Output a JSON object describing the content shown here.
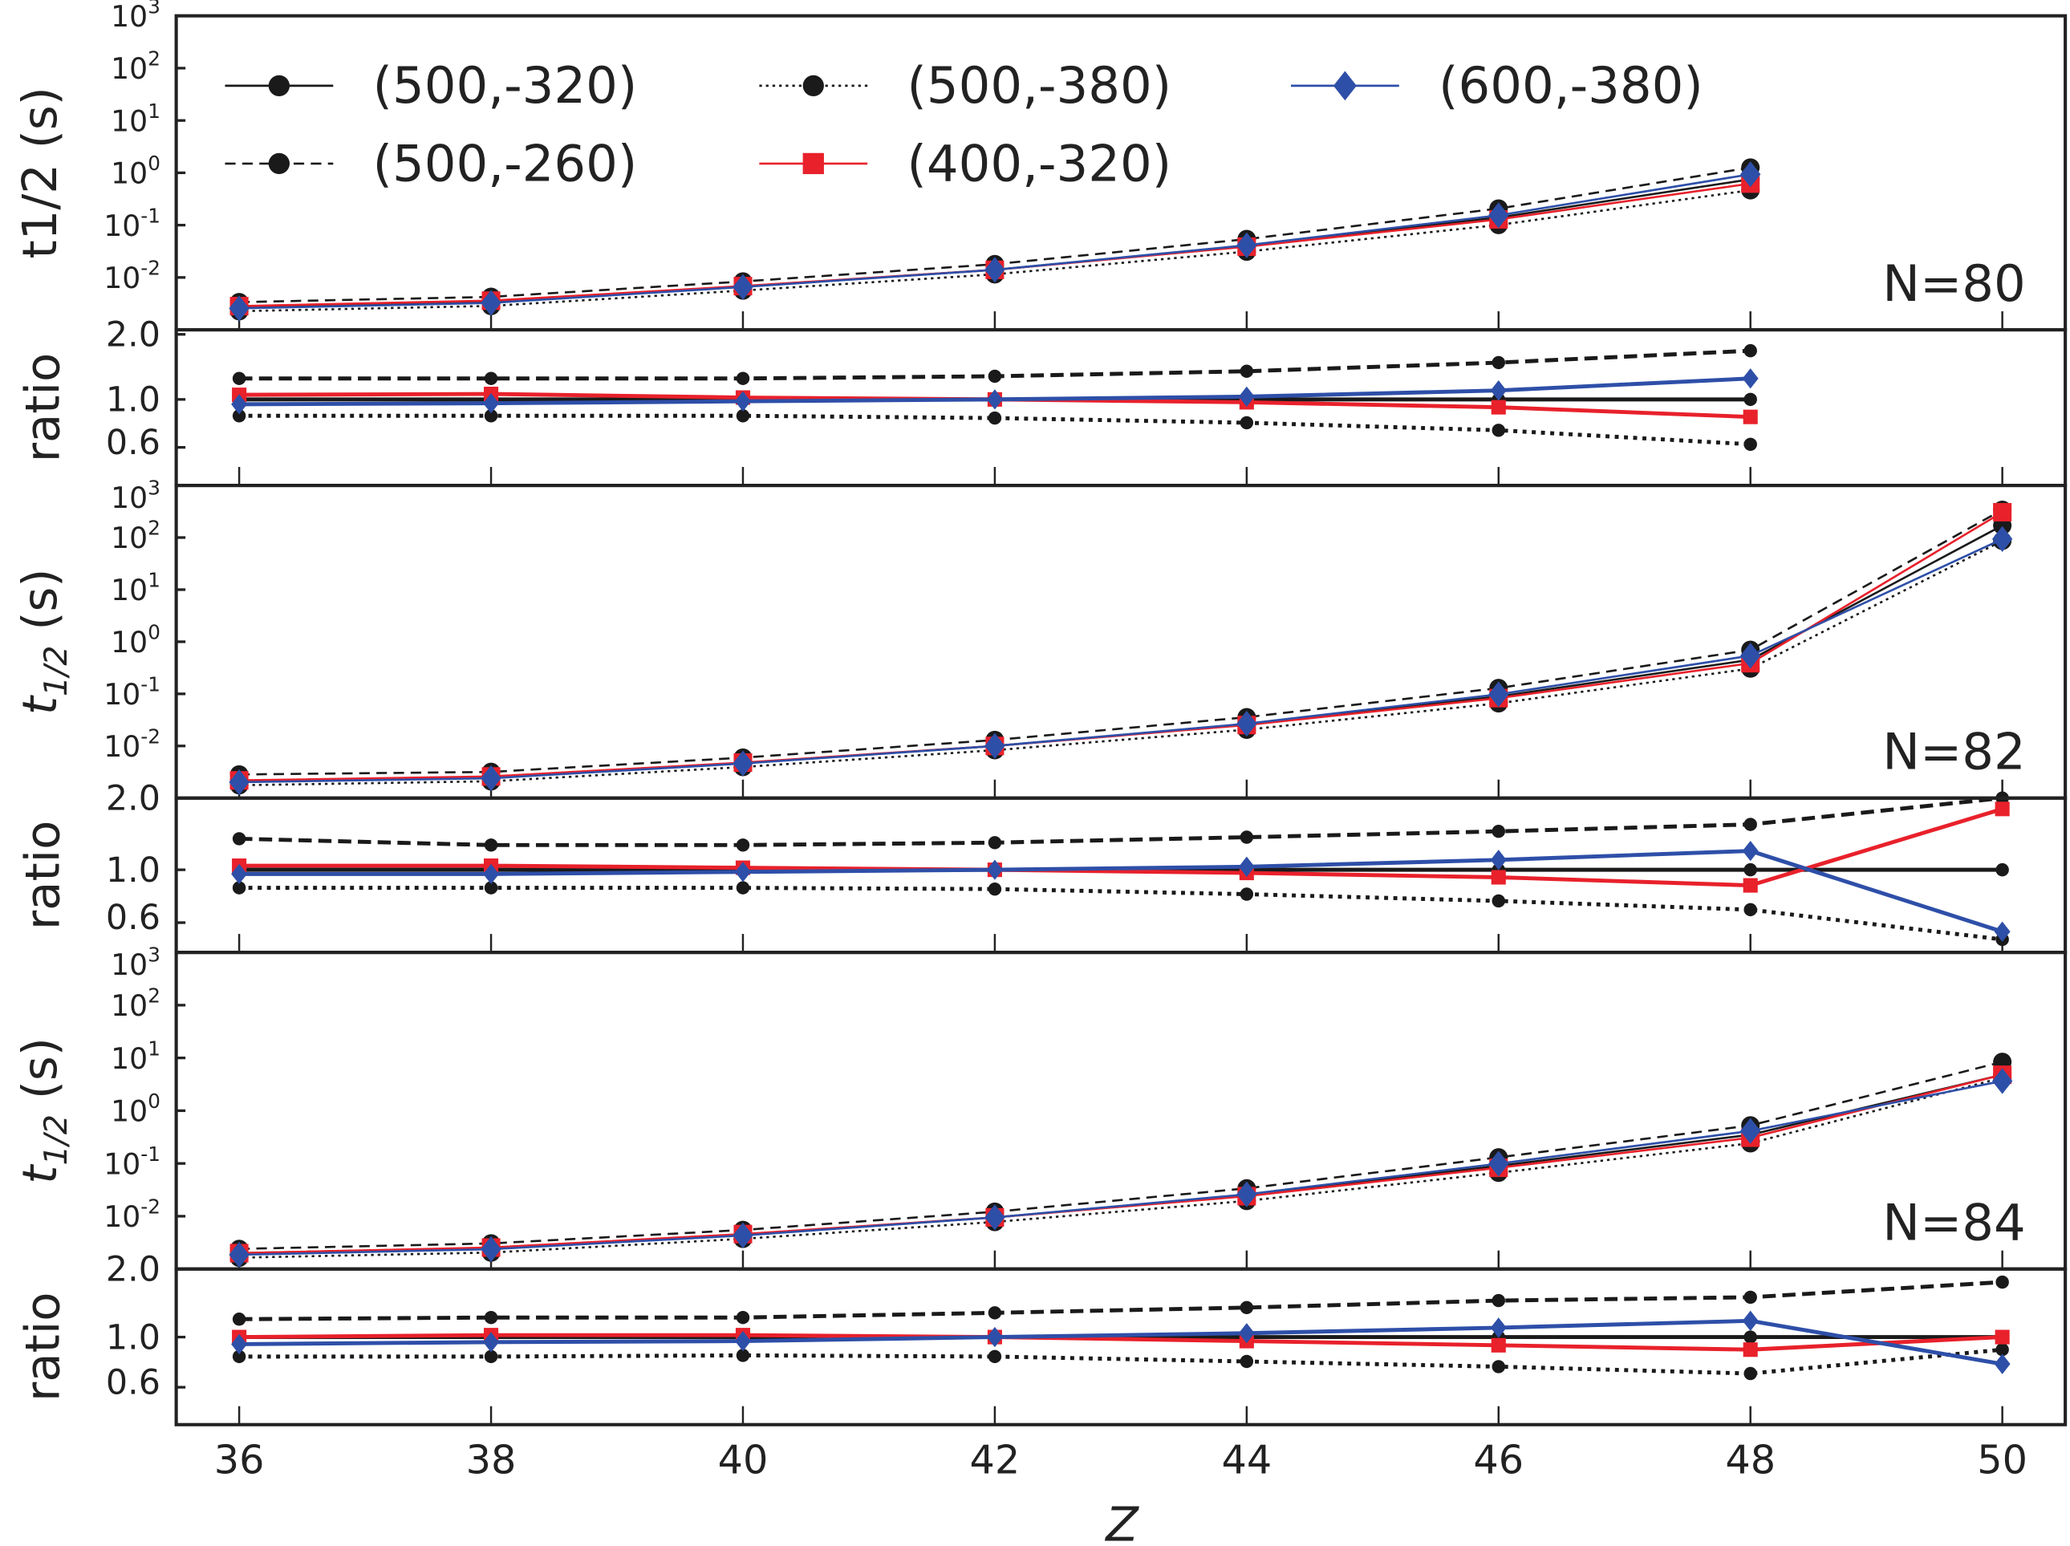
{
  "chart_data": {
    "type": "line",
    "x": [
      36,
      38,
      40,
      42,
      44,
      46,
      48,
      50
    ],
    "xlabel": "Z",
    "x_ticks": [
      36,
      38,
      40,
      42,
      44,
      46,
      48,
      50
    ],
    "xlim": [
      35.5,
      50.5
    ],
    "legend": {
      "placement": "top-left",
      "entries": [
        {
          "label": "(500,-320)",
          "color": "#1a1a1a",
          "dash": "solid",
          "marker": "circle"
        },
        {
          "label": "(500,-260)",
          "color": "#1a1a1a",
          "dash": "dashed",
          "marker": "circle"
        },
        {
          "label": "(500,-380)",
          "color": "#1a1a1a",
          "dash": "dotted",
          "marker": "circle"
        },
        {
          "label": "(400,-320)",
          "color": "#e8212b",
          "dash": "solid",
          "marker": "square"
        },
        {
          "label": "(600,-380)",
          "color": "#2e4fa8",
          "dash": "solid",
          "marker": "diamond"
        }
      ]
    },
    "panels": [
      {
        "label": "N=80",
        "t_ylabel": "t1/2 (s)",
        "t_ylabel_base": "t",
        "t_ylabel_sub": "1/2",
        "t_ylabel_unit": " (s)",
        "t_ylim_exp": [
          -3,
          3
        ],
        "t_ticks_exp": [
          "-2",
          "-1",
          "0",
          "1",
          "2",
          "3"
        ],
        "reference": [
          0.0027,
          0.0034,
          0.0067,
          0.014,
          0.04,
          0.14,
          0.75,
          null
        ],
        "ratio_ylabel": "ratio",
        "ratio_ylim": [
          0.4,
          2.1
        ],
        "ratio_ticks": [
          "0.6",
          "1.0",
          "2.0"
        ],
        "ratios": [
          [
            1,
            1,
            1,
            1,
            1,
            1,
            1,
            null
          ],
          [
            1.25,
            1.25,
            1.25,
            1.28,
            1.35,
            1.48,
            1.68,
            null
          ],
          [
            0.84,
            0.84,
            0.84,
            0.82,
            0.78,
            0.72,
            0.62,
            null
          ],
          [
            1.05,
            1.06,
            1.02,
            1.0,
            0.97,
            0.92,
            0.83,
            null
          ],
          [
            0.95,
            0.96,
            0.98,
            1.0,
            1.03,
            1.1,
            1.25,
            null
          ]
        ]
      },
      {
        "label": "N=82",
        "t_ylabel_base": "t",
        "t_ylabel_sub": "1/2",
        "t_ylabel_unit": " (s)",
        "t_ylim_exp": [
          -3,
          3
        ],
        "t_ticks_exp": [
          "-2",
          "-1",
          "0",
          "1",
          "2",
          "3"
        ],
        "reference": [
          0.0021,
          0.0025,
          0.0047,
          0.01,
          0.026,
          0.089,
          0.45,
          170
        ],
        "ratio_ylabel": "ratio",
        "ratio_ylim": [
          0.45,
          2.0
        ],
        "ratio_ticks": [
          "0.6",
          "1.0",
          "2.0"
        ],
        "ratios": [
          [
            1,
            1,
            1,
            1,
            1,
            1,
            1,
            1
          ],
          [
            1.35,
            1.27,
            1.27,
            1.3,
            1.37,
            1.45,
            1.55,
            2.0
          ],
          [
            0.84,
            0.84,
            0.84,
            0.83,
            0.79,
            0.74,
            0.68,
            0.51
          ],
          [
            1.04,
            1.04,
            1.02,
            1.0,
            0.97,
            0.93,
            0.86,
            1.8
          ],
          [
            0.96,
            0.96,
            0.98,
            1.0,
            1.03,
            1.1,
            1.2,
            0.55
          ]
        ]
      },
      {
        "label": "N=84",
        "t_ylabel_base": "t",
        "t_ylabel_sub": "1/2",
        "t_ylabel_unit": " (s)",
        "t_ylim_exp": [
          -3,
          3
        ],
        "t_ticks_exp": [
          "-2",
          "-1",
          "0",
          "1",
          "2",
          "3"
        ],
        "reference": [
          0.002,
          0.0025,
          0.0045,
          0.0095,
          0.025,
          0.09,
          0.35,
          4.8
        ],
        "ratio_ylabel": "ratio",
        "ratio_ylim": [
          0.41,
          2.0
        ],
        "ratio_ticks": [
          "0.6",
          "1.0",
          "2.0"
        ],
        "ratios": [
          [
            1,
            1,
            1,
            1,
            1,
            1,
            1,
            1
          ],
          [
            1.2,
            1.22,
            1.22,
            1.28,
            1.35,
            1.45,
            1.5,
            1.75
          ],
          [
            0.82,
            0.82,
            0.83,
            0.82,
            0.78,
            0.74,
            0.69,
            0.88
          ],
          [
            1.0,
            1.02,
            1.02,
            1.0,
            0.96,
            0.92,
            0.88,
            1.0
          ],
          [
            0.93,
            0.95,
            0.96,
            1.0,
            1.04,
            1.1,
            1.18,
            0.76
          ]
        ]
      }
    ],
    "tick_base": "10"
  }
}
